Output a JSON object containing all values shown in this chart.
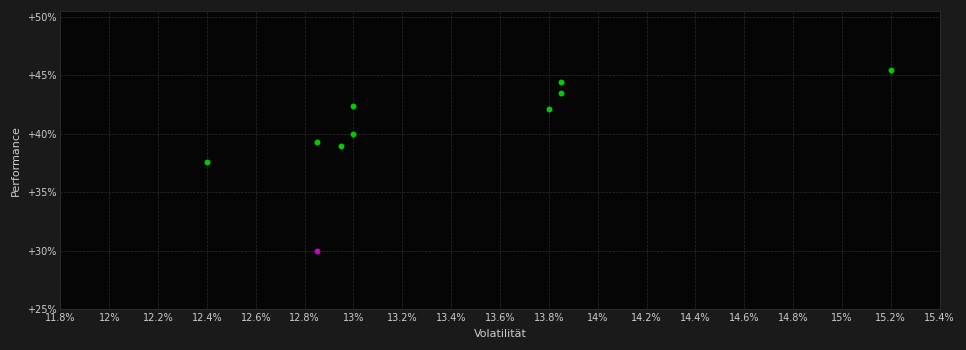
{
  "background_color": "#1a1a1a",
  "plot_bg_color": "#050505",
  "text_color": "#cccccc",
  "xlabel": "Volatilität",
  "ylabel": "Performance",
  "xlim": [
    0.118,
    0.154
  ],
  "ylim": [
    0.25,
    0.505
  ],
  "xticks": [
    0.118,
    0.12,
    0.122,
    0.124,
    0.126,
    0.128,
    0.13,
    0.132,
    0.134,
    0.136,
    0.138,
    0.14,
    0.142,
    0.144,
    0.146,
    0.148,
    0.15,
    0.152,
    0.154
  ],
  "xtick_labels": [
    "11.8%",
    "12%",
    "12.2%",
    "12.4%",
    "12.6%",
    "12.8%",
    "13%",
    "13.2%",
    "13.4%",
    "13.6%",
    "13.8%",
    "14%",
    "14.2%",
    "14.4%",
    "14.6%",
    "14.8%",
    "15%",
    "15.2%",
    "15.4%"
  ],
  "yticks": [
    0.25,
    0.3,
    0.35,
    0.4,
    0.45,
    0.5
  ],
  "ytick_labels": [
    "+25%",
    "+30%",
    "+35%",
    "+40%",
    "+45%",
    "+50%"
  ],
  "green_points": [
    [
      0.124,
      0.376
    ],
    [
      0.1285,
      0.393
    ],
    [
      0.1295,
      0.39
    ],
    [
      0.13,
      0.4
    ],
    [
      0.13,
      0.424
    ],
    [
      0.138,
      0.421
    ],
    [
      0.1385,
      0.444
    ],
    [
      0.1385,
      0.435
    ],
    [
      0.152,
      0.455
    ]
  ],
  "magenta_points": [
    [
      0.1285,
      0.3
    ]
  ],
  "green_color": "#00cc00",
  "magenta_color": "#cc00cc",
  "marker_size": 18,
  "grid_color": "#2d2d2d",
  "spine_color": "#333333"
}
